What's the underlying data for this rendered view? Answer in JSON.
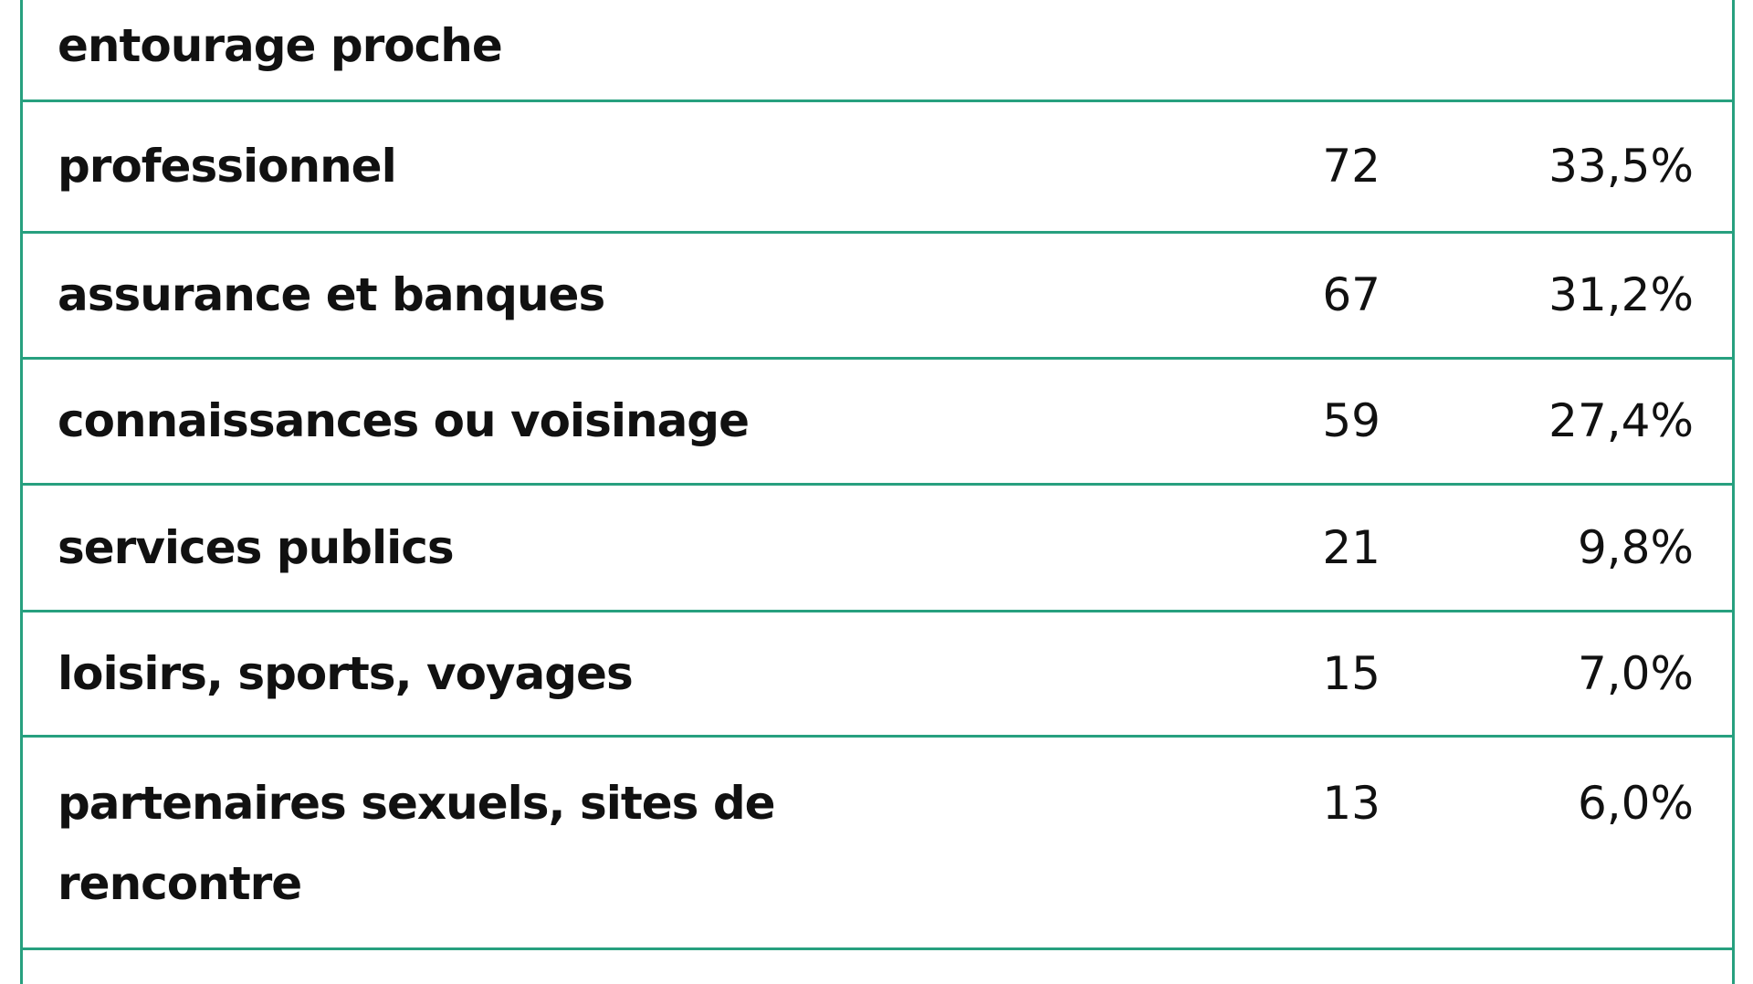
{
  "table": {
    "rows": [
      [
        "entourage proche"
      ],
      [
        "professionnel",
        "72",
        "33,5%"
      ],
      [
        "assurance et banques",
        "67",
        "31,2%"
      ],
      [
        "connaissances ou voisinage",
        "59",
        "27,4%"
      ],
      [
        "services publics",
        "21",
        "9,8%"
      ],
      [
        "loisirs, sports, voyages",
        "15",
        "7,0%"
      ],
      [
        "partenaires sexuels, sites de rencontre",
        "13",
        "6,0%"
      ]
    ]
  }
}
